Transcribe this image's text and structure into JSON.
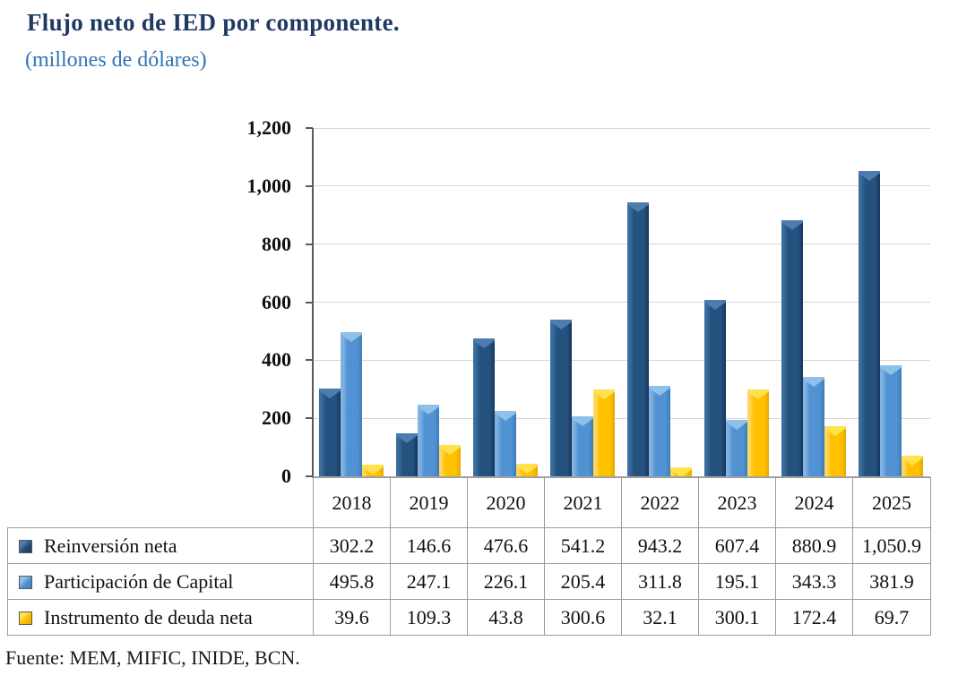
{
  "header": {
    "title": "Flujo neto de IED por componente.",
    "subtitle": "(millones de dólares)"
  },
  "chart_data": {
    "type": "bar",
    "title": "Flujo neto de IED por componente.",
    "subtitle": "(millones de dólares)",
    "categories": [
      "2018",
      "2019",
      "2020",
      "2021",
      "2022",
      "2023",
      "2024",
      "2025"
    ],
    "series": [
      {
        "key": "reinversion-neta",
        "name": "Reinversión neta",
        "values": [
          302.2,
          146.6,
          476.6,
          541.2,
          943.2,
          607.4,
          880.9,
          1050.9
        ],
        "color": "#24517D",
        "color_light": "#3A6EA0",
        "color_dark": "#16365C",
        "color_bevel": "#4F7CAE"
      },
      {
        "key": "participacion-de-capital",
        "name": "Participación de Capital",
        "values": [
          495.8,
          247.1,
          226.1,
          205.4,
          311.8,
          195.1,
          343.3,
          381.9
        ],
        "color": "#5193D2",
        "color_light": "#82B2E2",
        "color_dark": "#3E7CBB",
        "color_bevel": "#8FC0EA"
      },
      {
        "key": "instrumento-de-deuda-neta",
        "name": "Instrumento de deuda neta",
        "values": [
          39.6,
          109.3,
          43.8,
          300.6,
          32.1,
          300.1,
          172.4,
          69.7
        ],
        "color": "#FFC000",
        "color_light": "#FFD75E",
        "color_dark": "#E3A900",
        "color_bevel": "#FFE34D"
      }
    ],
    "xlabel": "",
    "ylabel": "",
    "y_axis": {
      "min": 0,
      "max": 1200,
      "step": 200,
      "tick_labels": [
        "0",
        "200",
        "400",
        "600",
        "800",
        "1,000",
        "1,200"
      ]
    },
    "grid": true,
    "legend_position": "table-left"
  },
  "table": {
    "columns": [
      "2018",
      "2019",
      "2020",
      "2021",
      "2022",
      "2023",
      "2024",
      "2025"
    ],
    "row_labels": [
      "Reinversión neta",
      "Participación de Capital",
      "Instrumento de deuda neta"
    ],
    "rows": [
      [
        "302.2",
        "146.6",
        "476.6",
        "541.2",
        "943.2",
        "607.4",
        "880.9",
        "1,050.9"
      ],
      [
        "495.8",
        "247.1",
        "226.1",
        "205.4",
        "311.8",
        "195.1",
        "343.3",
        "381.9"
      ],
      [
        "39.6",
        "109.3",
        "43.8",
        "300.6",
        "32.1",
        "300.1",
        "172.4",
        "69.7"
      ]
    ]
  },
  "footer": {
    "source": "Fuente: MEM, MIFIC, INIDE, BCN."
  },
  "colors": {
    "title": "#1F3864",
    "subtitle": "#2E75B6",
    "axis_line": "#595959",
    "gridline": "#D6D6D6",
    "table_border": "#9B9B9B"
  }
}
